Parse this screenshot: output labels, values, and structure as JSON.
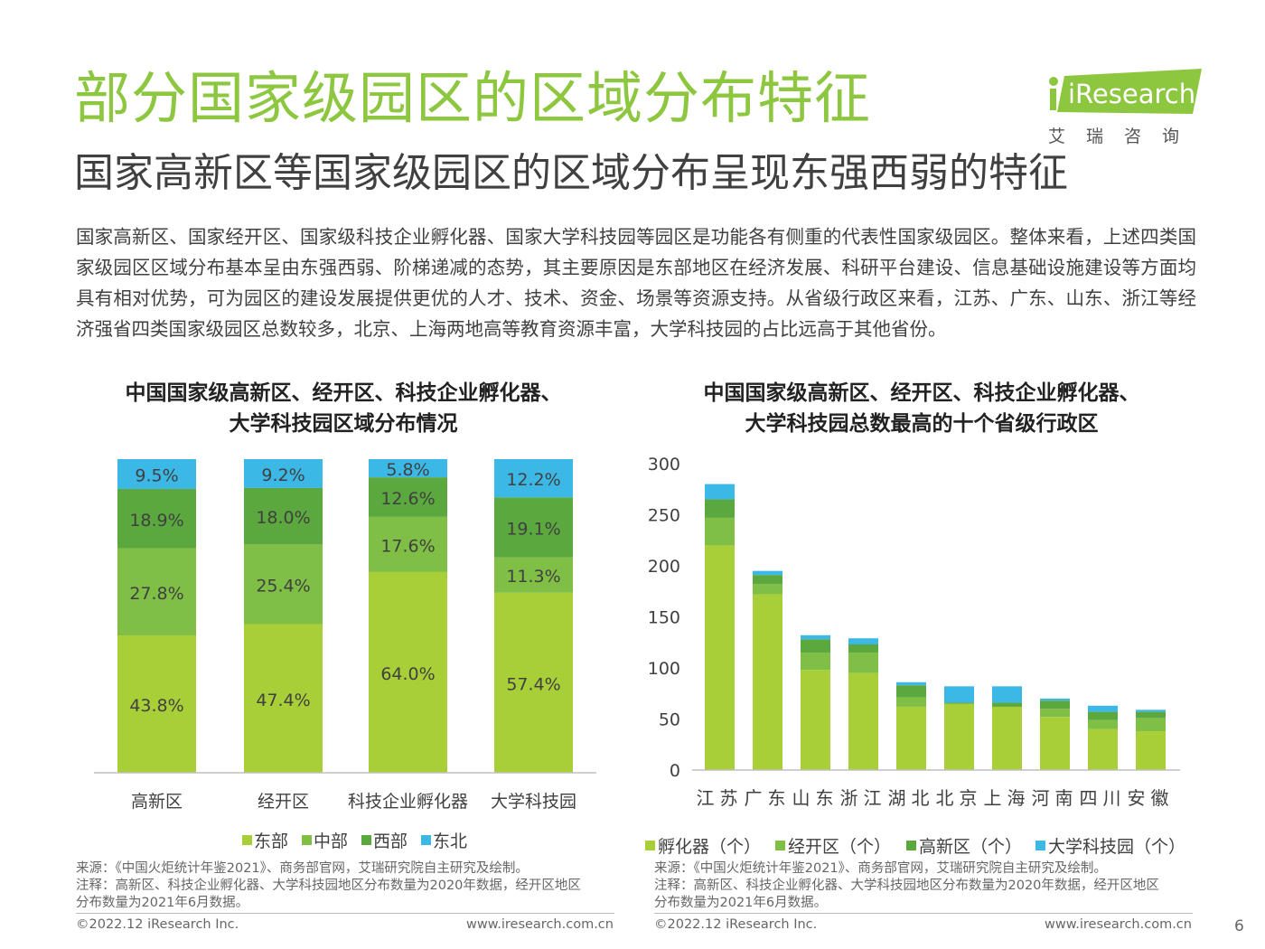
{
  "header": {
    "title": "部分国家级园区的区域分布特征",
    "subtitle": "国家高新区等国家级园区的区域分布呈现东强西弱的特征",
    "logo_text": "iResearch",
    "logo_sub": "艾瑞咨询"
  },
  "body_text": "国家高新区、国家经开区、国家级科技企业孵化器、国家大学科技园等园区是功能各有侧重的代表性国家级园区。整体来看，上述四类国家级园区区域分布基本呈由东强西弱、阶梯递减的态势，其主要原因是东部地区在经济发展、科研平台建设、信息基础设施建设等方面均具有相对优势，可为园区的建设发展提供更优的人才、技术、资金、场景等资源支持。从省级行政区来看，江苏、广东、山东、浙江等经济强省四类国家级园区总数较多，北京、上海两地高等教育资源丰富，大学科技园的占比远高于其他省份。",
  "colors": {
    "east": "#a8cf38",
    "central": "#7fbf45",
    "west": "#5aa83e",
    "northeast": "#3cb8e6",
    "accent": "#8dc63f"
  },
  "chart_data": [
    {
      "type": "bar",
      "stacked": true,
      "title": "中国国家级高新区、经开区、科技企业孵化器、\n大学科技园区域分布情况",
      "title_lines": [
        "中国国家级高新区、经开区、科技企业孵化器、",
        "大学科技园区域分布情况"
      ],
      "categories": [
        "高新区",
        "经开区",
        "科技企业孵化器",
        "大学科技园"
      ],
      "series": [
        {
          "name": "东部",
          "values": [
            43.8,
            47.4,
            64.0,
            57.4
          ],
          "labels": [
            "43.8%",
            "47.4%",
            "64.0%",
            "57.4%"
          ]
        },
        {
          "name": "中部",
          "values": [
            27.8,
            25.4,
            17.6,
            11.3
          ],
          "labels": [
            "27.8%",
            "25.4%",
            "17.6%",
            "11.3%"
          ]
        },
        {
          "name": "西部",
          "values": [
            18.9,
            18.0,
            12.6,
            19.1
          ],
          "labels": [
            "18.9%",
            "18.0%",
            "12.6%",
            "19.1%"
          ]
        },
        {
          "name": "东北",
          "values": [
            9.5,
            9.2,
            5.8,
            12.2
          ],
          "labels": [
            "9.5%",
            "9.2%",
            "5.8%",
            "12.2%"
          ]
        }
      ],
      "ylim": [
        0,
        100
      ],
      "legend": "bottom",
      "note_lines": [
        "来源：《中国火炬统计年鉴2021》、商务部官网，艾瑞研究院自主研究及绘制。",
        "注释：高新区、科技企业孵化器、大学科技园地区分布数量为2020年数据，经开区地区",
        "分布数量为2021年6月数据。"
      ]
    },
    {
      "type": "bar",
      "stacked": true,
      "title": "中国国家级高新区、经开区、科技企业孵化器、\n大学科技园总数最高的十个省级行政区",
      "title_lines": [
        "中国国家级高新区、经开区、科技企业孵化器、",
        "大学科技园总数最高的十个省级行政区"
      ],
      "categories": [
        "江苏",
        "广东",
        "山东",
        "浙江",
        "湖北",
        "北京",
        "上海",
        "河南",
        "四川",
        "安徽"
      ],
      "series": [
        {
          "name": "孵化器（个）",
          "values": [
            220,
            172,
            98,
            95,
            62,
            65,
            62,
            52,
            40,
            38
          ]
        },
        {
          "name": "经开区（个）",
          "values": [
            27,
            10,
            17,
            20,
            9,
            0,
            0,
            8,
            9,
            13
          ]
        },
        {
          "name": "高新区（个）",
          "values": [
            18,
            9,
            13,
            8,
            12,
            1,
            4,
            8,
            8,
            6
          ]
        },
        {
          "name": "大学科技园（个）",
          "values": [
            15,
            4,
            4,
            6,
            3,
            16,
            16,
            2,
            6,
            2
          ]
        }
      ],
      "yticks": [
        0,
        50,
        100,
        150,
        200,
        250,
        300
      ],
      "ylim": [
        0,
        300
      ],
      "legend": "bottom",
      "note_lines": [
        "来源：《中国火炬统计年鉴2021》、商务部官网，艾瑞研究院自主研究及绘制。",
        "注释：高新区、科技企业孵化器、大学科技园地区分布数量为2020年数据，经开区地区",
        "分布数量为2021年6月数据。"
      ]
    }
  ],
  "footer": {
    "left_copyright": "©2022.12 iResearch Inc.",
    "left_url": "www.iresearch.com.cn",
    "right_copyright": "©2022.12 iResearch Inc.",
    "right_url": "www.iresearch.com.cn",
    "page_number": "6"
  }
}
